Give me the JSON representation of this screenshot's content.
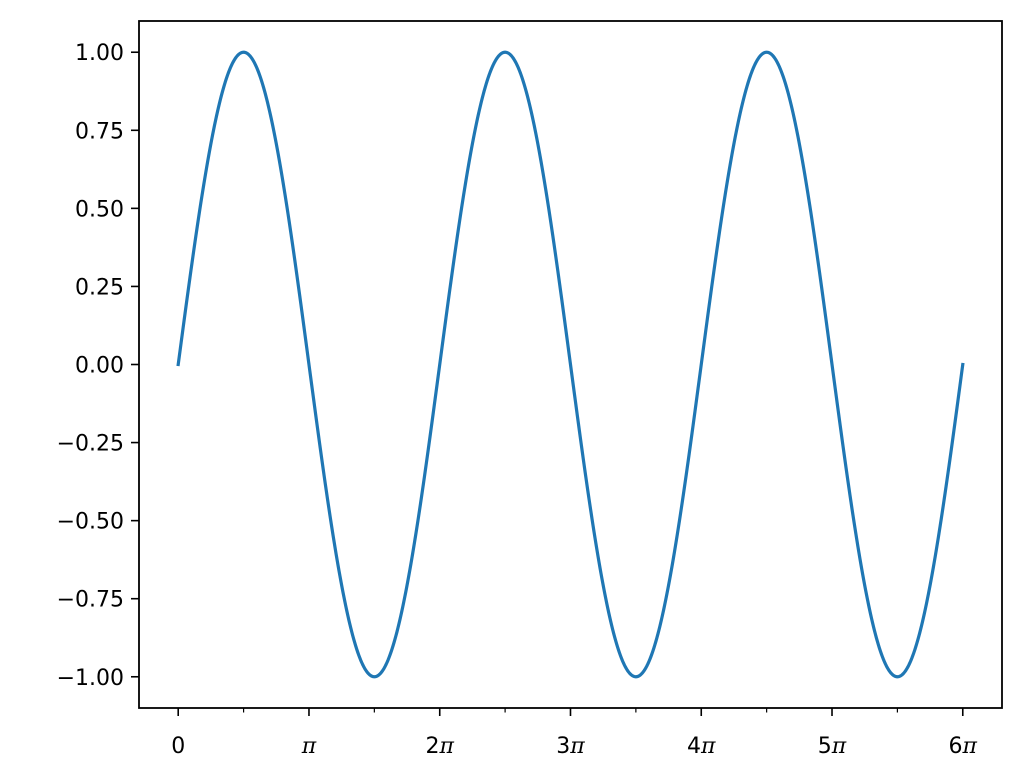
{
  "chart_data": {
    "type": "line",
    "title": "",
    "xlabel": "",
    "ylabel": "",
    "xlim": [
      -0.942,
      19.792
    ],
    "ylim": [
      -1.1,
      1.1
    ],
    "grid": false,
    "legend": "none",
    "series": [
      {
        "function": "sin(x)",
        "x_start": 0,
        "x_end": 18.8496,
        "color": "#1f77b4"
      }
    ],
    "x_ticks": [
      {
        "value": 0,
        "label": "0"
      },
      {
        "value": 3.14159,
        "label": "π"
      },
      {
        "value": 6.28319,
        "label": "2π"
      },
      {
        "value": 9.42478,
        "label": "3π"
      },
      {
        "value": 12.56637,
        "label": "4π"
      },
      {
        "value": 15.70796,
        "label": "5π"
      },
      {
        "value": 18.84956,
        "label": "6π"
      }
    ],
    "x_minor_ticks": [
      1.5708,
      4.7124,
      7.854,
      10.9956,
      14.1372,
      17.2788
    ],
    "y_ticks": [
      {
        "value": 1.0,
        "label": "1.00"
      },
      {
        "value": 0.75,
        "label": "0.75"
      },
      {
        "value": 0.5,
        "label": "0.50"
      },
      {
        "value": 0.25,
        "label": "0.25"
      },
      {
        "value": 0.0,
        "label": "0.00"
      },
      {
        "value": -0.25,
        "label": "−0.25"
      },
      {
        "value": -0.5,
        "label": "−0.50"
      },
      {
        "value": -0.75,
        "label": "−0.75"
      },
      {
        "value": -1.0,
        "label": "−1.00"
      }
    ]
  }
}
